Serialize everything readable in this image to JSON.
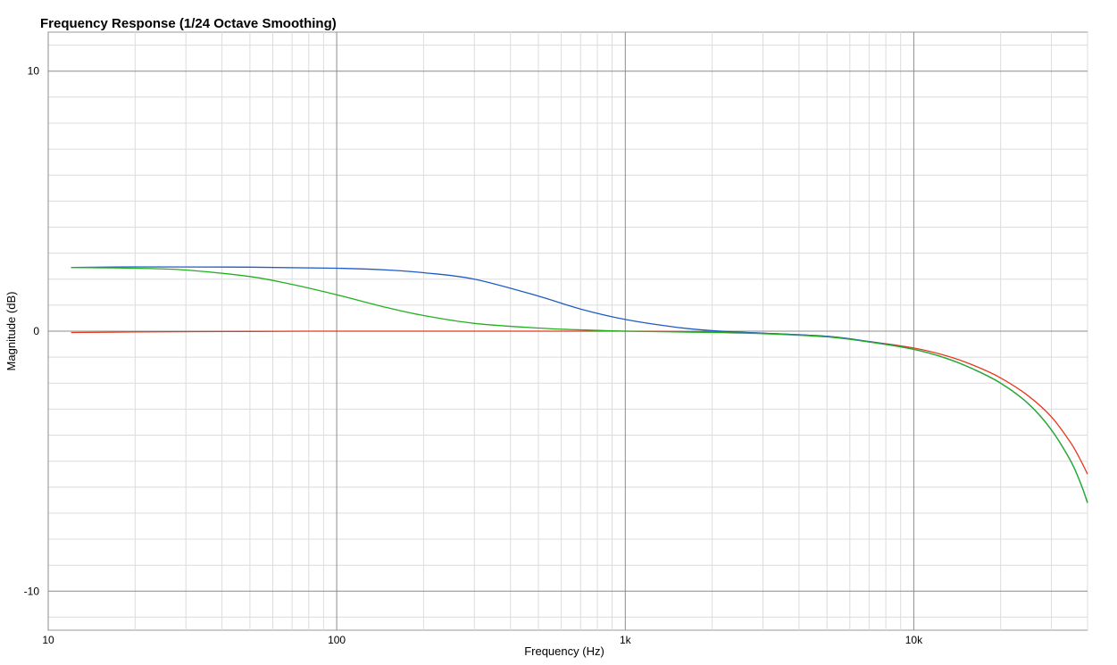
{
  "chart_data": {
    "type": "line",
    "title": "Frequency Response (1/24 Octave Smoothing)",
    "xlabel": "Frequency (Hz)",
    "ylabel": "Magnitude (dB)",
    "x_scale": "log",
    "xlim": [
      10,
      40000
    ],
    "ylim": [
      -11.5,
      11.5
    ],
    "grid": true,
    "x_ticks": [
      {
        "value": 10,
        "label": "10"
      },
      {
        "value": 100,
        "label": "100"
      },
      {
        "value": 1000,
        "label": "1k"
      },
      {
        "value": 10000,
        "label": "10k"
      }
    ],
    "y_ticks": [
      {
        "value": 10,
        "label": "10"
      },
      {
        "value": 0,
        "label": "0"
      },
      {
        "value": -10,
        "label": "-10"
      }
    ],
    "series": [
      {
        "color": "#e8371c",
        "points": [
          [
            12,
            -0.05
          ],
          [
            20,
            -0.03
          ],
          [
            50,
            -0.01
          ],
          [
            100,
            0
          ],
          [
            200,
            0
          ],
          [
            500,
            0
          ],
          [
            1000,
            0
          ],
          [
            2000,
            -0.03
          ],
          [
            3000,
            -0.08
          ],
          [
            5000,
            -0.2
          ],
          [
            7000,
            -0.4
          ],
          [
            10000,
            -0.65
          ],
          [
            13000,
            -0.95
          ],
          [
            16000,
            -1.3
          ],
          [
            20000,
            -1.8
          ],
          [
            25000,
            -2.5
          ],
          [
            30000,
            -3.3
          ],
          [
            35000,
            -4.3
          ],
          [
            38000,
            -5.0
          ],
          [
            40000,
            -5.5
          ]
        ]
      },
      {
        "color": "#1f5bc7",
        "points": [
          [
            12,
            2.45
          ],
          [
            20,
            2.47
          ],
          [
            50,
            2.46
          ],
          [
            100,
            2.42
          ],
          [
            150,
            2.35
          ],
          [
            200,
            2.25
          ],
          [
            300,
            2.0
          ],
          [
            500,
            1.35
          ],
          [
            700,
            0.85
          ],
          [
            1000,
            0.45
          ],
          [
            1500,
            0.15
          ],
          [
            2000,
            0.02
          ],
          [
            3000,
            -0.08
          ],
          [
            5000,
            -0.2
          ],
          [
            7000,
            -0.4
          ],
          [
            10000,
            -0.7
          ],
          [
            13000,
            -1.05
          ],
          [
            16000,
            -1.45
          ],
          [
            20000,
            -2.0
          ],
          [
            25000,
            -2.8
          ],
          [
            30000,
            -3.8
          ],
          [
            35000,
            -5.0
          ],
          [
            38000,
            -5.9
          ],
          [
            40000,
            -6.6
          ]
        ]
      },
      {
        "color": "#22b022",
        "points": [
          [
            12,
            2.45
          ],
          [
            20,
            2.42
          ],
          [
            30,
            2.35
          ],
          [
            50,
            2.1
          ],
          [
            70,
            1.8
          ],
          [
            100,
            1.4
          ],
          [
            150,
            0.9
          ],
          [
            200,
            0.6
          ],
          [
            300,
            0.3
          ],
          [
            500,
            0.12
          ],
          [
            700,
            0.05
          ],
          [
            1000,
            0
          ],
          [
            2000,
            -0.05
          ],
          [
            3000,
            -0.1
          ],
          [
            5000,
            -0.22
          ],
          [
            7000,
            -0.42
          ],
          [
            10000,
            -0.7
          ],
          [
            13000,
            -1.05
          ],
          [
            16000,
            -1.45
          ],
          [
            20000,
            -2.0
          ],
          [
            25000,
            -2.8
          ],
          [
            30000,
            -3.8
          ],
          [
            35000,
            -5.0
          ],
          [
            38000,
            -5.9
          ],
          [
            40000,
            -6.6
          ]
        ]
      }
    ]
  }
}
